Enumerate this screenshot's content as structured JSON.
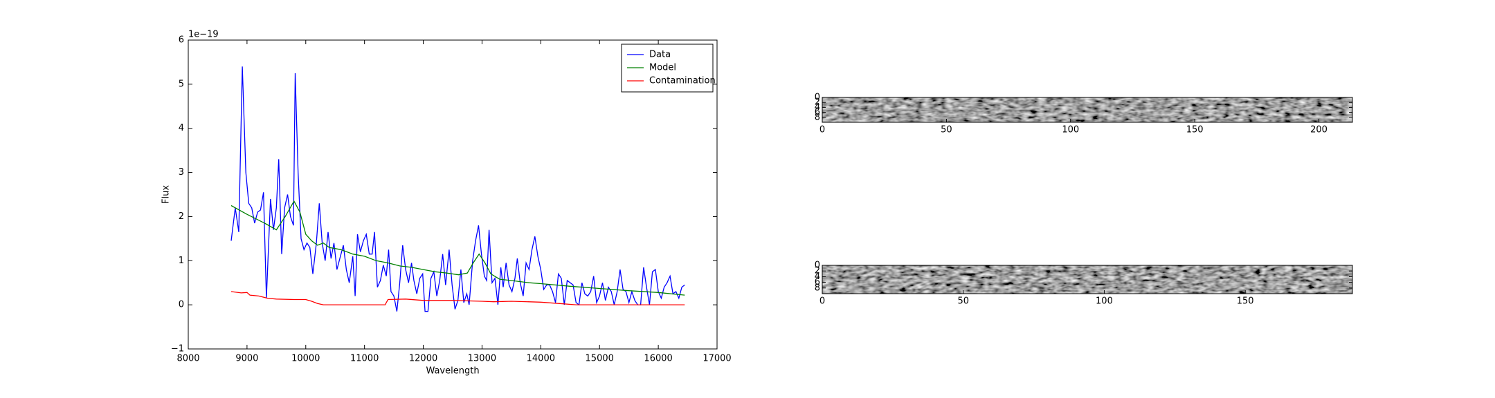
{
  "chart_data": [
    {
      "type": "line",
      "xlabel": "Wavelength",
      "ylabel": "Flux",
      "y_offset_label": "1e−19",
      "xlim": [
        8000,
        17000
      ],
      "ylim": [
        -1,
        6
      ],
      "xticks": [
        8000,
        9000,
        10000,
        11000,
        12000,
        13000,
        14000,
        15000,
        16000,
        17000
      ],
      "yticks": [
        {
          "value": -1,
          "label": "−1"
        },
        0,
        1,
        2,
        3,
        4,
        5,
        6
      ],
      "legend": "upper right",
      "series": [
        {
          "name": "Data",
          "color": "#0000ff",
          "x": [
            8730,
            8800,
            8860,
            8920,
            8980,
            9030,
            9080,
            9130,
            9180,
            9230,
            9280,
            9330,
            9400,
            9450,
            9500,
            9540,
            9590,
            9640,
            9690,
            9740,
            9790,
            9820,
            9870,
            9920,
            9970,
            10020,
            10070,
            10120,
            10180,
            10230,
            10280,
            10330,
            10380,
            10430,
            10480,
            10530,
            10580,
            10640,
            10690,
            10740,
            10800,
            10840,
            10880,
            10930,
            10980,
            11030,
            11080,
            11130,
            11170,
            11220,
            11270,
            11320,
            11370,
            11410,
            11450,
            11500,
            11550,
            11600,
            11650,
            11700,
            11750,
            11800,
            11840,
            11890,
            11940,
            11990,
            12030,
            12080,
            12130,
            12180,
            12230,
            12280,
            12330,
            12380,
            12440,
            12490,
            12540,
            12590,
            12640,
            12690,
            12740,
            12780,
            12840,
            12890,
            12940,
            12990,
            13040,
            13080,
            13120,
            13170,
            13220,
            13270,
            13320,
            13360,
            13410,
            13460,
            13510,
            13560,
            13600,
            13650,
            13700,
            13750,
            13800,
            13850,
            13900,
            13950,
            14000,
            14050,
            14100,
            14150,
            14200,
            14250,
            14300,
            14350,
            14400,
            14450,
            14500,
            14550,
            14600,
            14650,
            14700,
            14750,
            14800,
            14850,
            14900,
            14950,
            15000,
            15050,
            15100,
            15150,
            15200,
            15250,
            15300,
            15350,
            15400,
            15450,
            15500,
            15550,
            15600,
            15650,
            15700,
            15750,
            15800,
            15850,
            15900,
            15950,
            16000,
            16050,
            16100,
            16150,
            16200,
            16250,
            16300,
            16350,
            16400,
            16450
          ],
          "values": [
            1.45,
            2.2,
            1.65,
            5.4,
            3.0,
            2.3,
            2.2,
            1.85,
            2.1,
            2.15,
            2.55,
            0.15,
            2.4,
            1.7,
            2.2,
            3.3,
            1.15,
            2.2,
            2.5,
            2.0,
            1.8,
            5.25,
            3.0,
            1.5,
            1.25,
            1.4,
            1.3,
            0.7,
            1.4,
            2.3,
            1.4,
            1.0,
            1.65,
            1.05,
            1.4,
            0.8,
            1.05,
            1.35,
            0.8,
            0.5,
            1.1,
            0.2,
            1.6,
            1.2,
            1.45,
            1.6,
            1.15,
            1.15,
            1.65,
            0.4,
            0.55,
            0.9,
            0.65,
            1.25,
            0.3,
            0.2,
            -0.15,
            0.5,
            1.35,
            0.8,
            0.5,
            0.95,
            0.55,
            0.25,
            0.6,
            0.7,
            -0.15,
            -0.15,
            0.6,
            0.75,
            0.2,
            0.55,
            1.15,
            0.45,
            1.25,
            0.45,
            -0.1,
            0.1,
            0.8,
            0.05,
            0.25,
            0.0,
            1.0,
            1.45,
            1.8,
            1.15,
            0.65,
            0.55,
            1.7,
            0.5,
            0.6,
            0.0,
            0.85,
            0.4,
            0.95,
            0.45,
            0.3,
            0.6,
            1.05,
            0.5,
            0.2,
            0.95,
            0.8,
            1.25,
            1.55,
            1.1,
            0.8,
            0.35,
            0.45,
            0.45,
            0.3,
            0.05,
            0.7,
            0.6,
            0.0,
            0.55,
            0.5,
            0.45,
            0.05,
            0.0,
            0.5,
            0.25,
            0.2,
            0.3,
            0.65,
            0.05,
            0.2,
            0.5,
            0.1,
            0.4,
            0.3,
            0.0,
            0.3,
            0.8,
            0.35,
            0.3,
            0.05,
            0.3,
            0.1,
            0.0,
            0.0,
            0.85,
            0.4,
            0.0,
            0.75,
            0.8,
            0.3,
            0.15,
            0.4,
            0.5,
            0.65,
            0.25,
            0.3,
            0.15,
            0.4,
            0.45
          ]
        },
        {
          "name": "Model",
          "color": "#008000",
          "x": [
            8730,
            9000,
            9300,
            9500,
            9650,
            9800,
            9900,
            10000,
            10100,
            10200,
            10300,
            10400,
            10600,
            10800,
            11000,
            11200,
            11400,
            11600,
            11800,
            12000,
            12200,
            12400,
            12600,
            12750,
            12850,
            12950,
            13050,
            13150,
            13300,
            13500,
            13800,
            14000,
            14500,
            15000,
            15500,
            16000,
            16450
          ],
          "values": [
            2.25,
            2.05,
            1.85,
            1.7,
            2.0,
            2.35,
            2.1,
            1.6,
            1.45,
            1.35,
            1.4,
            1.3,
            1.25,
            1.15,
            1.1,
            1.0,
            0.95,
            0.88,
            0.85,
            0.8,
            0.75,
            0.72,
            0.68,
            0.72,
            0.95,
            1.15,
            0.95,
            0.7,
            0.58,
            0.55,
            0.5,
            0.48,
            0.42,
            0.37,
            0.32,
            0.28,
            0.22
          ]
        },
        {
          "name": "Contamination",
          "color": "#ff0000",
          "x": [
            8730,
            8900,
            9000,
            9050,
            9200,
            9350,
            9500,
            9800,
            10000,
            10100,
            10200,
            10300,
            10600,
            11000,
            11350,
            11400,
            11700,
            12000,
            12500,
            13000,
            13200,
            13500,
            14000,
            14300,
            14600,
            15000,
            16450
          ],
          "values": [
            0.3,
            0.27,
            0.28,
            0.22,
            0.2,
            0.15,
            0.13,
            0.12,
            0.12,
            0.08,
            0.03,
            0.0,
            0.0,
            0.0,
            0.0,
            0.12,
            0.13,
            0.1,
            0.1,
            0.08,
            0.07,
            0.08,
            0.06,
            0.03,
            0.0,
            0.0,
            0.0
          ]
        }
      ]
    },
    {
      "type": "image",
      "xlim": [
        0,
        213.5
      ],
      "ylim": [
        0,
        10
      ],
      "xticks": [
        0,
        50,
        100,
        150,
        200
      ],
      "yticks": [
        0,
        2,
        4,
        6,
        8
      ]
    },
    {
      "type": "image",
      "xlim": [
        0,
        188
      ],
      "ylim": [
        0,
        10
      ],
      "xticks": [
        0,
        50,
        100,
        150
      ],
      "yticks": [
        0,
        2,
        4,
        6,
        8
      ]
    }
  ]
}
